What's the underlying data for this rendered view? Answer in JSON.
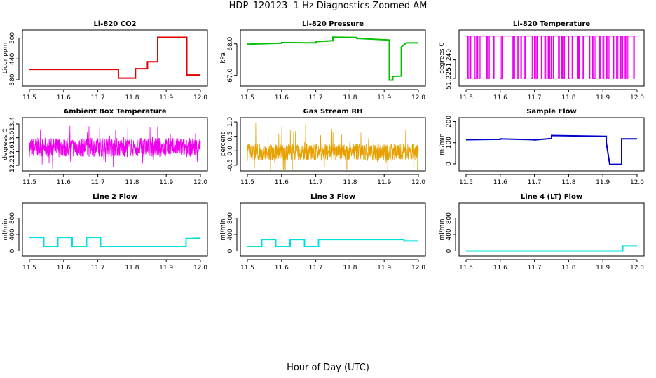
{
  "title": "HDP_120123  1 Hz Diagnostics Zoomed AM",
  "xlabel": "Hour of Day (UTC)",
  "chart_data": [
    {
      "type": "line",
      "title": "Li-820 CO2",
      "ylabel": "Licor ppm",
      "xlim": [
        11.5,
        12.0
      ],
      "ylim": [
        370,
        515
      ],
      "xticks": [
        "11.5",
        "11.6",
        "11.7",
        "11.8",
        "11.9",
        "12.0"
      ],
      "yticks": [
        "380",
        "440",
        "500"
      ],
      "series": [
        {
          "color": "#e00000",
          "style": "step",
          "x": [
            11.5,
            11.76,
            11.76,
            11.81,
            11.81,
            11.845,
            11.845,
            11.875,
            11.875,
            11.96,
            11.96,
            12.0
          ],
          "y": [
            410,
            410,
            385,
            385,
            412,
            412,
            432,
            432,
            502,
            502,
            394,
            394
          ]
        }
      ]
    },
    {
      "type": "line",
      "title": "Li-820 Pressure",
      "ylabel": "kPa",
      "xlim": [
        11.5,
        12.0
      ],
      "ylim": [
        66.75,
        68.35
      ],
      "xticks": [
        "11.5",
        "11.6",
        "11.7",
        "11.8",
        "11.9",
        "12.0"
      ],
      "yticks": [
        "67.0",
        "68.0"
      ],
      "series": [
        {
          "color": "#00c000",
          "style": "step",
          "x": [
            11.5,
            11.6,
            11.6,
            11.7,
            11.7,
            11.75,
            11.75,
            11.82,
            11.82,
            11.915,
            11.915,
            11.925,
            11.925,
            11.95,
            11.95,
            11.965,
            11.965,
            12.0
          ],
          "y": [
            67.99,
            68.02,
            68.04,
            68.03,
            68.07,
            68.1,
            68.21,
            68.2,
            68.17,
            68.12,
            66.85,
            66.85,
            66.97,
            66.98,
            67.9,
            68.03,
            68.03,
            68.03
          ]
        }
      ]
    },
    {
      "type": "line",
      "title": "Li-820 Temperature",
      "ylabel": "degrees C",
      "xlim": [
        11.5,
        12.0
      ],
      "ylim": [
        51.221,
        51.262
      ],
      "xticks": [
        "11.5",
        "11.6",
        "11.7",
        "11.8",
        "11.9",
        "12.0"
      ],
      "yticks": [
        "51.225",
        "51.240"
      ],
      "series": [
        {
          "color": "#ee00ee",
          "style": "toggle",
          "base": 51.2593,
          "low": 51.2248,
          "x_dips": [
            11.505,
            11.512,
            11.525,
            11.532,
            11.538,
            11.56,
            11.565,
            11.58,
            11.6,
            11.605,
            11.635,
            11.64,
            11.65,
            11.66,
            11.67,
            11.69,
            11.7,
            11.705,
            11.72,
            11.73,
            11.74,
            11.745,
            11.755,
            11.77,
            11.78,
            11.785,
            11.8,
            11.81,
            11.825,
            11.83,
            11.84,
            11.86,
            11.87,
            11.875,
            11.89,
            11.9,
            11.91,
            11.915,
            11.93,
            11.94,
            11.95,
            11.955,
            11.965,
            11.97,
            11.99
          ],
          "widths": [
            0.003,
            0.002,
            0.004,
            0.002,
            0.003,
            0.002,
            0.003,
            0.002,
            0.004,
            0.002,
            0.003,
            0.002,
            0.003,
            0.002,
            0.003,
            0.004,
            0.002,
            0.003,
            0.002,
            0.003,
            0.002,
            0.004,
            0.002,
            0.003,
            0.002,
            0.003,
            0.004,
            0.002,
            0.003,
            0.002,
            0.003,
            0.002,
            0.003,
            0.004,
            0.002,
            0.003,
            0.002,
            0.003,
            0.002,
            0.004,
            0.002,
            0.003,
            0.002,
            0.003,
            0.002
          ]
        }
      ]
    },
    {
      "type": "line",
      "title": "Ambient Box Temperature",
      "ylabel": "degrees C",
      "xlim": [
        11.5,
        12.0
      ],
      "ylim": [
        12.12,
        13.5
      ],
      "xticks": [
        "11.5",
        "11.6",
        "11.7",
        "11.8",
        "11.9",
        "12.0"
      ],
      "yticks": [
        "12.2",
        "12.6",
        "13.0",
        "13.4"
      ],
      "series": [
        {
          "color": "#ee00ee",
          "style": "noise",
          "center": 12.72,
          "amp": 0.28,
          "spikes": 0.35,
          "n": 900,
          "seed": 7
        }
      ]
    },
    {
      "type": "line",
      "title": "Gas Stream RH",
      "ylabel": "percent",
      "xlim": [
        11.5,
        12.0
      ],
      "ylim": [
        -0.6,
        1.05
      ],
      "xticks": [
        "11.5",
        "11.6",
        "11.7",
        "11.8",
        "11.9",
        "12.0"
      ],
      "yticks": [
        "-0.5",
        "0.0",
        "0.5",
        "1.0"
      ],
      "series": [
        {
          "color": "#e8a000",
          "style": "noise",
          "center": -0.05,
          "amp": 0.3,
          "spikes": 0.75,
          "n": 900,
          "seed": 13
        }
      ]
    },
    {
      "type": "line",
      "title": "Sample Flow",
      "ylabel": "ml/min",
      "xlim": [
        11.5,
        12.0
      ],
      "ylim": [
        -20,
        205
      ],
      "xticks": [
        "11.5",
        "11.6",
        "11.7",
        "11.8",
        "11.9",
        "12.0"
      ],
      "yticks": [
        "0",
        "100",
        "200"
      ],
      "series": [
        {
          "color": "#0000cc",
          "style": "step",
          "x": [
            11.5,
            11.6,
            11.6,
            11.7,
            11.7,
            11.75,
            11.75,
            11.91,
            11.91,
            11.92,
            11.92,
            11.955,
            11.955,
            12.0
          ],
          "y": [
            114,
            116,
            118,
            114,
            113,
            120,
            134,
            130,
            100,
            -2,
            -2,
            -2,
            118,
            118
          ]
        }
      ]
    },
    {
      "type": "line",
      "title": "Line 2 Flow",
      "ylabel": "ml/min",
      "xlim": [
        11.5,
        12.0
      ],
      "ylim": [
        -60,
        1100
      ],
      "xticks": [
        "11.5",
        "11.6",
        "11.7",
        "11.8",
        "11.9",
        "12.0"
      ],
      "yticks": [
        "0",
        "400",
        "800"
      ],
      "series": [
        {
          "color": "#00e0e0",
          "style": "step",
          "x": [
            11.5,
            11.542,
            11.542,
            11.583,
            11.583,
            11.625,
            11.625,
            11.667,
            11.667,
            11.708,
            11.708,
            11.958,
            11.958,
            12.0
          ],
          "y": [
            330,
            330,
            110,
            110,
            330,
            330,
            110,
            110,
            330,
            330,
            110,
            110,
            300,
            310
          ]
        }
      ]
    },
    {
      "type": "line",
      "title": "Line 3 Flow",
      "ylabel": "ml/min",
      "xlim": [
        11.5,
        12.0
      ],
      "ylim": [
        -60,
        1100
      ],
      "xticks": [
        "11.5",
        "11.6",
        "11.7",
        "11.8",
        "11.9",
        "12.0"
      ],
      "yticks": [
        "0",
        "400",
        "800"
      ],
      "series": [
        {
          "color": "#00e0e0",
          "style": "step",
          "x": [
            11.5,
            11.542,
            11.542,
            11.583,
            11.583,
            11.625,
            11.625,
            11.667,
            11.667,
            11.708,
            11.708,
            11.958,
            11.958,
            12.0
          ],
          "y": [
            110,
            110,
            280,
            280,
            110,
            110,
            280,
            280,
            110,
            110,
            280,
            280,
            240,
            240
          ]
        }
      ]
    },
    {
      "type": "line",
      "title": "Line 4 (LT) Flow",
      "ylabel": "ml/min",
      "xlim": [
        11.5,
        12.0
      ],
      "ylim": [
        -60,
        1100
      ],
      "xticks": [
        "11.5",
        "11.6",
        "11.7",
        "11.8",
        "11.9",
        "12.0"
      ],
      "yticks": [
        "0",
        "400",
        "800"
      ],
      "series": [
        {
          "color": "#00e0e0",
          "style": "step",
          "x": [
            11.5,
            11.958,
            11.958,
            12.0
          ],
          "y": [
            0,
            0,
            120,
            120
          ]
        }
      ]
    }
  ]
}
